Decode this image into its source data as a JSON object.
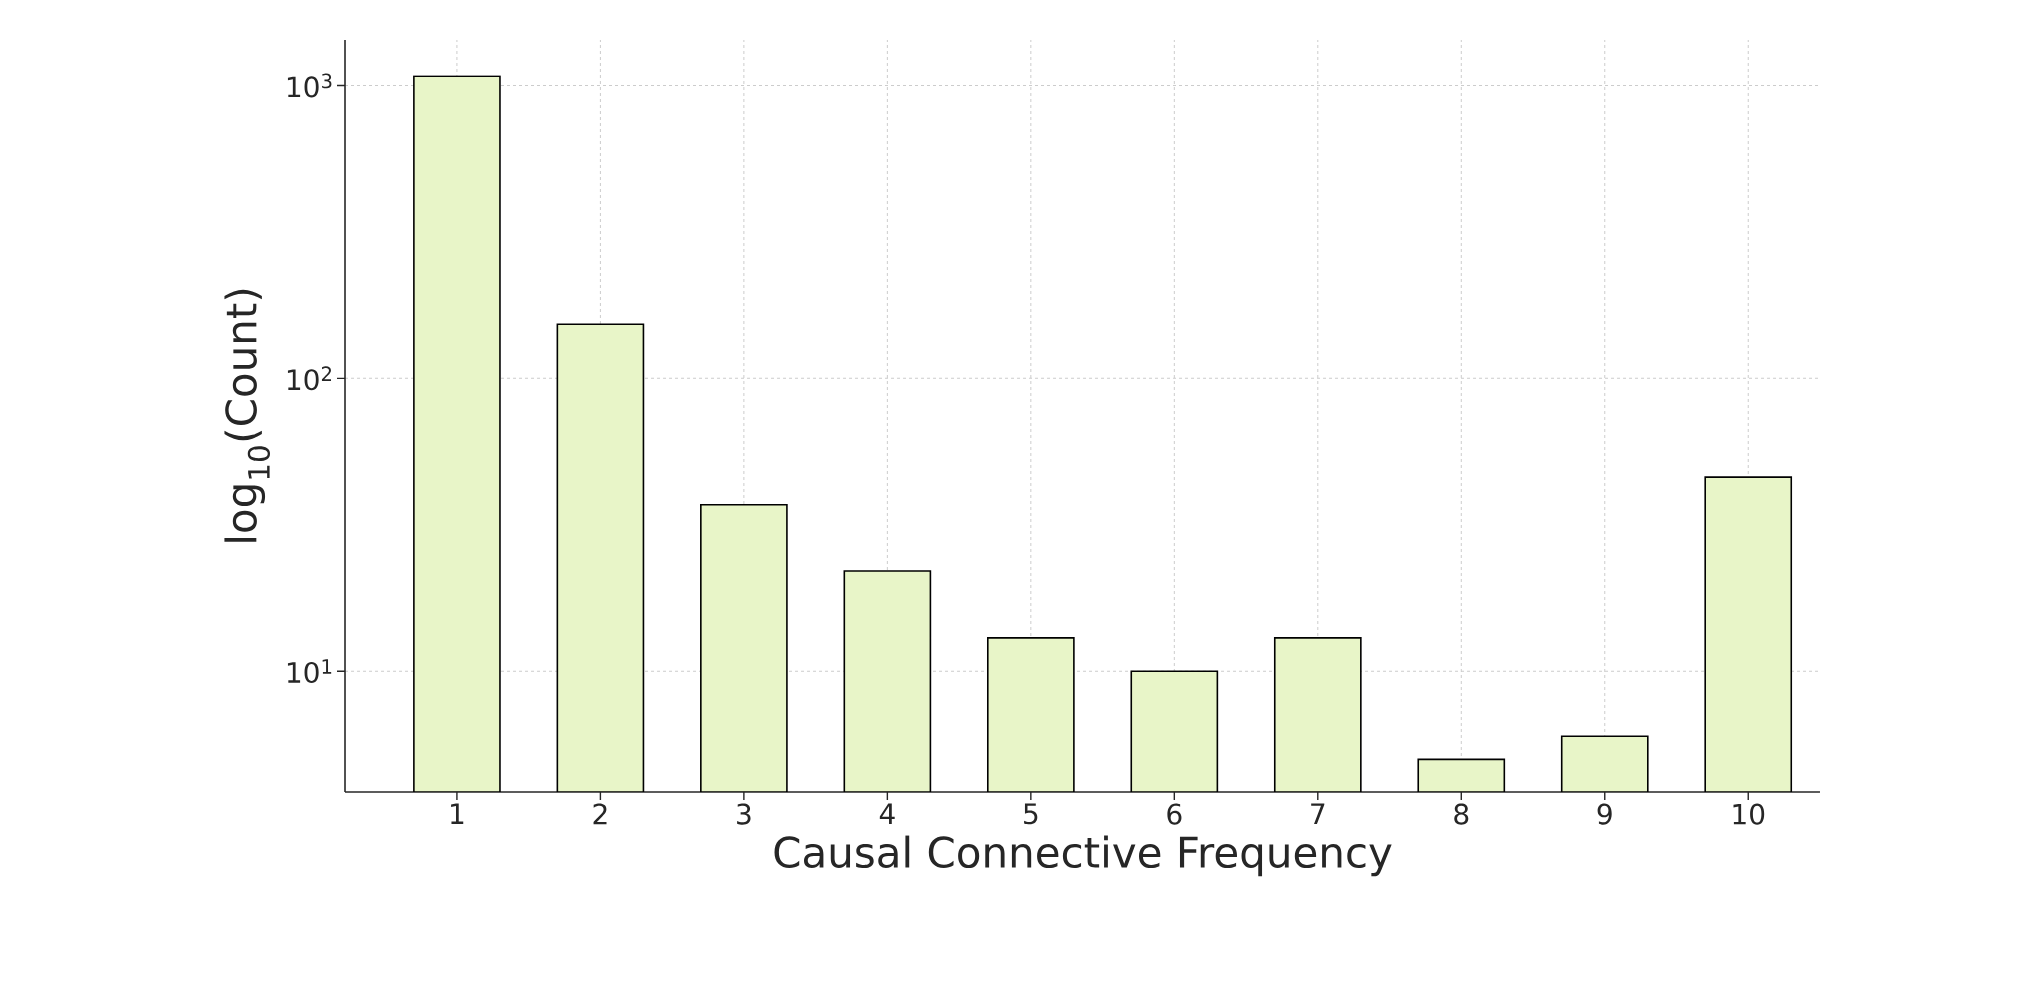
{
  "chart_data": {
    "type": "bar",
    "xlabel": "Causal Connective Frequency",
    "ylabel": "log$_{10}$(Count)",
    "categories": [
      "1",
      "2",
      "3",
      "4",
      "5",
      "6",
      "7",
      "8",
      "9",
      "10"
    ],
    "values": [
      1075,
      153,
      37,
      22,
      13,
      10,
      13,
      5,
      6,
      46
    ],
    "color": "#e8f5c8",
    "log": true,
    "ylim": [
      3.87,
      1430
    ],
    "yticks": [
      {
        "value": 10,
        "label": "10$^{1}$"
      },
      {
        "value": 100,
        "label": "10$^{2}$"
      },
      {
        "value": 1000,
        "label": "10$^{3}$"
      }
    ],
    "grid": true
  }
}
